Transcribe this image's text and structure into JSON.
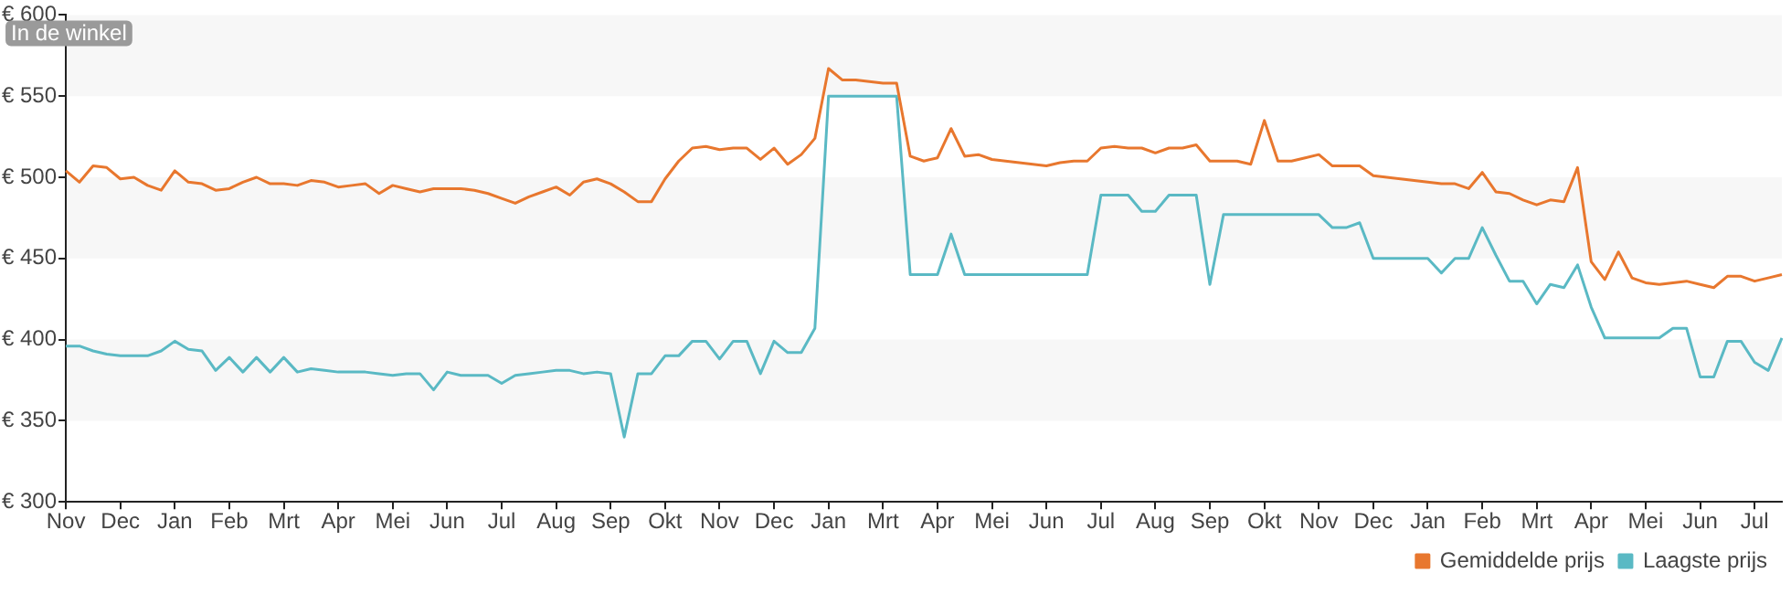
{
  "chart_data": {
    "type": "line",
    "annotations": [
      "In de winkel"
    ],
    "categories": [
      "Nov",
      null,
      null,
      null,
      "Dec",
      null,
      null,
      null,
      "Jan",
      null,
      null,
      null,
      "Feb",
      null,
      null,
      null,
      "Mrt",
      null,
      null,
      null,
      "Apr",
      null,
      null,
      null,
      "Mei",
      null,
      null,
      null,
      "Jun",
      null,
      null,
      null,
      "Jul",
      null,
      null,
      null,
      "Aug",
      null,
      null,
      null,
      "Sep",
      null,
      null,
      null,
      "Okt",
      null,
      null,
      null,
      "Nov",
      null,
      null,
      null,
      "Dec",
      null,
      null,
      null,
      "Jan",
      null,
      null,
      null,
      "Mrt",
      null,
      null,
      null,
      "Apr",
      null,
      null,
      null,
      "Mei",
      null,
      null,
      null,
      "Jun",
      null,
      null,
      null,
      "Jul",
      null,
      null,
      null,
      "Aug",
      null,
      null,
      null,
      "Sep",
      null,
      null,
      null,
      "Okt",
      null,
      null,
      null,
      "Nov",
      null,
      null,
      null,
      "Dec",
      null,
      null,
      null,
      "Jan",
      null,
      null,
      null,
      "Feb",
      null,
      null,
      null,
      "Mrt",
      null,
      null,
      null,
      "Apr",
      null,
      null,
      null,
      "Mei",
      null,
      null,
      null,
      "Jun",
      null,
      null,
      null,
      "Jul",
      null,
      null
    ],
    "ylim": [
      300,
      600
    ],
    "yticks": [
      {
        "value": 300,
        "label": "€ 300"
      },
      {
        "value": 350,
        "label": "€ 350"
      },
      {
        "value": 400,
        "label": "€ 400"
      },
      {
        "value": 450,
        "label": "€ 450"
      },
      {
        "value": 500,
        "label": "€ 500"
      },
      {
        "value": 550,
        "label": "€ 550"
      },
      {
        "value": 600,
        "label": "€ 600"
      }
    ],
    "bands": [
      {
        "axis": "y",
        "from": 350,
        "to": 400,
        "color": "#f7f7f7"
      },
      {
        "axis": "y",
        "from": 450,
        "to": 500,
        "color": "#f7f7f7"
      },
      {
        "axis": "y",
        "from": 550,
        "to": 600,
        "color": "#f7f7f7"
      }
    ],
    "legend": "bottom right",
    "marker": "none",
    "line_style": "solid",
    "series": [
      {
        "name": "Gemiddelde prijs",
        "color": "#e8772e",
        "values": [
          504,
          497,
          507,
          506,
          499,
          500,
          495,
          492,
          504,
          497,
          496,
          492,
          493,
          497,
          500,
          496,
          496,
          495,
          498,
          497,
          494,
          495,
          496,
          490,
          495,
          493,
          491,
          493,
          493,
          493,
          492,
          490,
          487,
          484,
          488,
          491,
          494,
          489,
          497,
          499,
          496,
          491,
          485,
          485,
          499,
          510,
          518,
          519,
          517,
          518,
          518,
          511,
          518,
          508,
          514,
          524,
          567,
          560,
          560,
          559,
          558,
          558,
          513,
          510,
          512,
          530,
          513,
          514,
          511,
          510,
          509,
          508,
          507,
          509,
          510,
          510,
          518,
          519,
          518,
          518,
          515,
          518,
          518,
          520,
          510,
          510,
          510,
          508,
          535,
          510,
          510,
          512,
          514,
          507,
          507,
          507,
          501,
          500,
          499,
          498,
          497,
          496,
          496,
          493,
          503,
          491,
          490,
          486,
          483,
          486,
          485,
          506,
          448,
          437,
          454,
          438,
          435,
          434,
          435,
          436,
          434,
          432,
          439,
          439,
          436,
          438,
          440
        ]
      },
      {
        "name": "Laagste prijs",
        "color": "#5ab9c4",
        "values": [
          396,
          396,
          393,
          391,
          390,
          390,
          390,
          393,
          399,
          394,
          393,
          381,
          389,
          380,
          389,
          380,
          389,
          380,
          382,
          381,
          380,
          380,
          380,
          379,
          378,
          379,
          379,
          369,
          380,
          378,
          378,
          378,
          373,
          378,
          379,
          380,
          381,
          381,
          379,
          380,
          379,
          340,
          379,
          379,
          390,
          390,
          399,
          399,
          388,
          399,
          399,
          379,
          399,
          392,
          392,
          407,
          550,
          550,
          550,
          550,
          550,
          550,
          440,
          440,
          440,
          465,
          440,
          440,
          440,
          440,
          440,
          440,
          440,
          440,
          440,
          440,
          489,
          489,
          489,
          479,
          479,
          489,
          489,
          489,
          434,
          477,
          477,
          477,
          477,
          477,
          477,
          477,
          477,
          469,
          469,
          472,
          450,
          450,
          450,
          450,
          450,
          441,
          450,
          450,
          469,
          452,
          436,
          436,
          422,
          434,
          432,
          446,
          420,
          401,
          401,
          401,
          401,
          401,
          407,
          407,
          377,
          377,
          399,
          399,
          386,
          381,
          401
        ]
      }
    ]
  }
}
